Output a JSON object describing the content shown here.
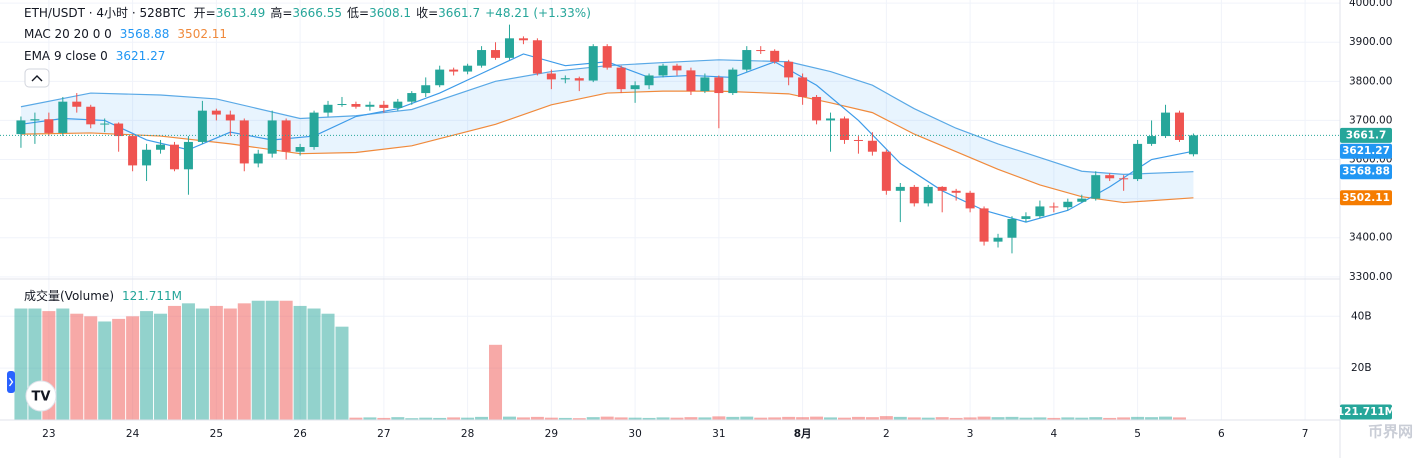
{
  "chart_data": {
    "type": "candlestick",
    "title": "ETH/USDT · 4小时 · 528BTC",
    "ohlc_labels": [
      "开=",
      "高=",
      "低=",
      "收="
    ],
    "change_label": "+48.21 (+1.33%)",
    "colors": {
      "up": "#26a69a",
      "down": "#ef5350"
    },
    "candles": {
      "open": [
        3665,
        3700,
        3703,
        3668,
        3748,
        3735,
        3690,
        3692,
        3660,
        3585,
        3625,
        3638,
        3575,
        3645,
        3725,
        3715,
        3700,
        3590,
        3615,
        3700,
        3620,
        3632,
        3720,
        3740,
        3742,
        3735,
        3740,
        3732,
        3748,
        3770,
        3790,
        3830,
        3825,
        3840,
        3880,
        3860,
        3910,
        3905,
        3820,
        3805,
        3808,
        3802,
        3890,
        3835,
        3780,
        3790,
        3815,
        3840,
        3828,
        3775,
        3810,
        3770,
        3830,
        3880,
        3878,
        3850,
        3810,
        3760,
        3700,
        3705,
        3650,
        3648,
        3620,
        3520,
        3530,
        3488,
        3530,
        3520,
        3515,
        3475,
        3390,
        3400,
        3448,
        3455,
        3480,
        3478,
        3492,
        3500,
        3560,
        3552,
        3550,
        3640,
        3660,
        3720,
        3613.49
      ],
      "high": [
        3710,
        3720,
        3720,
        3760,
        3770,
        3740,
        3705,
        3695,
        3665,
        3640,
        3650,
        3645,
        3660,
        3750,
        3730,
        3725,
        3705,
        3625,
        3725,
        3705,
        3640,
        3725,
        3750,
        3760,
        3748,
        3748,
        3750,
        3755,
        3775,
        3810,
        3840,
        3835,
        3845,
        3890,
        3900,
        3945,
        3915,
        3910,
        3830,
        3815,
        3812,
        3895,
        3895,
        3840,
        3800,
        3820,
        3845,
        3845,
        3835,
        3820,
        3815,
        3835,
        3890,
        3890,
        3882,
        3855,
        3820,
        3765,
        3720,
        3710,
        3660,
        3670,
        3625,
        3540,
        3535,
        3535,
        3532,
        3525,
        3520,
        3480,
        3410,
        3455,
        3465,
        3495,
        3490,
        3500,
        3510,
        3570,
        3565,
        3560,
        3650,
        3700,
        3740,
        3725,
        3666.55
      ],
      "low": [
        3630,
        3640,
        3660,
        3660,
        3720,
        3680,
        3670,
        3620,
        3570,
        3545,
        3615,
        3570,
        3510,
        3640,
        3700,
        3660,
        3570,
        3580,
        3605,
        3600,
        3610,
        3625,
        3710,
        3735,
        3730,
        3725,
        3720,
        3725,
        3740,
        3760,
        3785,
        3815,
        3818,
        3835,
        3855,
        3855,
        3895,
        3815,
        3780,
        3795,
        3775,
        3798,
        3830,
        3770,
        3745,
        3780,
        3810,
        3815,
        3765,
        3770,
        3680,
        3765,
        3825,
        3870,
        3845,
        3790,
        3740,
        3690,
        3620,
        3640,
        3615,
        3610,
        3510,
        3440,
        3480,
        3480,
        3465,
        3495,
        3465,
        3380,
        3375,
        3360,
        3440,
        3450,
        3465,
        3470,
        3490,
        3495,
        3545,
        3520,
        3545,
        3635,
        3655,
        3645,
        3608.1
      ],
      "close": [
        3700,
        3703,
        3668,
        3748,
        3735,
        3690,
        3692,
        3660,
        3585,
        3625,
        3638,
        3575,
        3645,
        3725,
        3715,
        3700,
        3590,
        3615,
        3700,
        3620,
        3632,
        3720,
        3740,
        3742,
        3735,
        3740,
        3732,
        3748,
        3770,
        3790,
        3830,
        3825,
        3840,
        3880,
        3860,
        3910,
        3905,
        3820,
        3805,
        3808,
        3802,
        3890,
        3835,
        3780,
        3790,
        3815,
        3840,
        3828,
        3775,
        3810,
        3770,
        3830,
        3880,
        3878,
        3850,
        3810,
        3760,
        3700,
        3705,
        3650,
        3648,
        3620,
        3520,
        3530,
        3488,
        3530,
        3520,
        3515,
        3475,
        3390,
        3400,
        3448,
        3455,
        3480,
        3478,
        3492,
        3500,
        3560,
        3552,
        3550,
        3640,
        3660,
        3720,
        3650,
        3661.7
      ]
    },
    "xlim": [
      -1.5,
      94.5
    ],
    "xticks": [
      {
        "value": 2,
        "label": "23"
      },
      {
        "value": 8,
        "label": "24"
      },
      {
        "value": 14,
        "label": "25"
      },
      {
        "value": 20,
        "label": "26"
      },
      {
        "value": 26,
        "label": "27"
      },
      {
        "value": 32,
        "label": "28"
      },
      {
        "value": 38,
        "label": "29"
      },
      {
        "value": 44,
        "label": "30"
      },
      {
        "value": 50,
        "label": "31"
      },
      {
        "value": 56,
        "label": "8月"
      },
      {
        "value": 62,
        "label": "2"
      },
      {
        "value": 68,
        "label": "3"
      },
      {
        "value": 74,
        "label": "4"
      },
      {
        "value": 80,
        "label": "5"
      },
      {
        "value": 86,
        "label": "6"
      },
      {
        "value": 92,
        "label": "7"
      }
    ],
    "ylim": [
      3297,
      4008
    ],
    "yticks": [
      {
        "value": 3300,
        "label": "3300.00"
      },
      {
        "value": 3400,
        "label": "3400.00"
      },
      {
        "value": 3500,
        "label": "3500.00"
      },
      {
        "value": 3600,
        "label": "3600.00"
      },
      {
        "value": 3700,
        "label": "3700.00"
      },
      {
        "value": 3800,
        "label": "3800.00"
      },
      {
        "value": 3900,
        "label": "3900.00"
      },
      {
        "value": 4000,
        "label": "4000.00"
      }
    ],
    "indicators": [
      {
        "name": "MAC 20 20 0 0",
        "fill": "rgba(33,150,243,0.1)",
        "lines": [
          {
            "color": "#5aa9e6",
            "x": [
              0,
              5,
              10,
              14,
              20,
              24,
              28,
              34,
              38,
              42,
              46,
              50,
              55,
              58,
              61,
              64,
              67,
              70,
              73,
              76,
              79,
              84
            ],
            "values": [
              3735,
              3770,
              3765,
              3755,
              3705,
              3712,
              3728,
              3800,
              3825,
              3840,
              3848,
              3855,
              3850,
              3825,
              3790,
              3730,
              3680,
              3640,
              3605,
              3570,
              3562,
              3568.88
            ]
          },
          {
            "color": "#f08a3c",
            "x": [
              0,
              5,
              10,
              15,
              20,
              24,
              28,
              34,
              38,
              42,
              46,
              50,
              55,
              58,
              61,
              64,
              67,
              70,
              73,
              76,
              79,
              84
            ],
            "values": [
              3665,
              3668,
              3660,
              3640,
              3615,
              3618,
              3635,
              3690,
              3740,
              3770,
              3775,
              3775,
              3768,
              3745,
              3720,
              3665,
              3620,
              3575,
              3535,
              3505,
              3490,
              3502.11
            ]
          }
        ]
      },
      {
        "name": "EMA 9 close 0",
        "lines": [
          {
            "color": "#3d9be9",
            "x": [
              0,
              3,
              6,
              9,
              12,
              15,
              18,
              21,
              24,
              27,
              30,
              33,
              36,
              39,
              42,
              45,
              48,
              51,
              54,
              57,
              60,
              63,
              66,
              69,
              72,
              75,
              78,
              81,
              84
            ],
            "values": [
              3690,
              3705,
              3700,
              3650,
              3625,
              3670,
              3650,
              3660,
              3710,
              3730,
              3770,
              3820,
              3870,
              3840,
              3850,
              3810,
              3815,
              3810,
              3850,
              3790,
              3700,
              3590,
              3520,
              3470,
              3440,
              3470,
              3530,
              3600,
              3621.27
            ]
          }
        ]
      }
    ],
    "volume": {
      "title": "成交量(Volume)",
      "values": [
        43,
        43,
        42,
        43,
        41,
        40,
        38,
        39,
        40,
        42,
        41,
        44,
        45,
        43,
        44,
        43,
        45,
        46,
        46,
        46,
        44,
        43,
        41,
        36,
        0.9,
        1.0,
        0.8,
        1.1,
        0.7,
        0.9,
        0.8,
        1.0,
        0.9,
        1.2,
        29,
        1.3,
        1.0,
        1.2,
        0.9,
        0.8,
        0.7,
        1.1,
        1.3,
        1.0,
        0.9,
        0.8,
        1.0,
        0.9,
        1.1,
        1.0,
        1.4,
        1.2,
        1.3,
        0.9,
        1.0,
        1.2,
        1.1,
        1.3,
        1.0,
        0.9,
        1.2,
        1.1,
        1.5,
        1.2,
        1.0,
        0.9,
        1.1,
        0.8,
        1.0,
        1.3,
        1.1,
        1.2,
        0.9,
        1.0,
        0.8,
        1.0,
        0.9,
        1.1,
        0.8,
        1.0,
        1.2,
        1.1,
        1.3,
        1.0,
        0.121711
      ],
      "value_labels": [
        null,
        null,
        null,
        null,
        null,
        null,
        null,
        null,
        null,
        null,
        null,
        null,
        null,
        null,
        null,
        null,
        null,
        null,
        null,
        null,
        null,
        null,
        null,
        null,
        null,
        null,
        null,
        null,
        null,
        null,
        null,
        null,
        null,
        null,
        null,
        null,
        null,
        null,
        null,
        null,
        null,
        null,
        null,
        null,
        null,
        null,
        null,
        null,
        null,
        null,
        null,
        null,
        null,
        null,
        null,
        null,
        null,
        null,
        null,
        null,
        null,
        null,
        null,
        null,
        null,
        null,
        null,
        null,
        null,
        null,
        null,
        null,
        null,
        null,
        null,
        null,
        null,
        null,
        null,
        null,
        null,
        null,
        null,
        null,
        "121.711M"
      ],
      "ylim": [
        0,
        54
      ],
      "yticks": [
        {
          "value": 20,
          "label": "20B"
        },
        {
          "value": 40,
          "label": "40B"
        }
      ]
    },
    "watermark": "币界网"
  }
}
